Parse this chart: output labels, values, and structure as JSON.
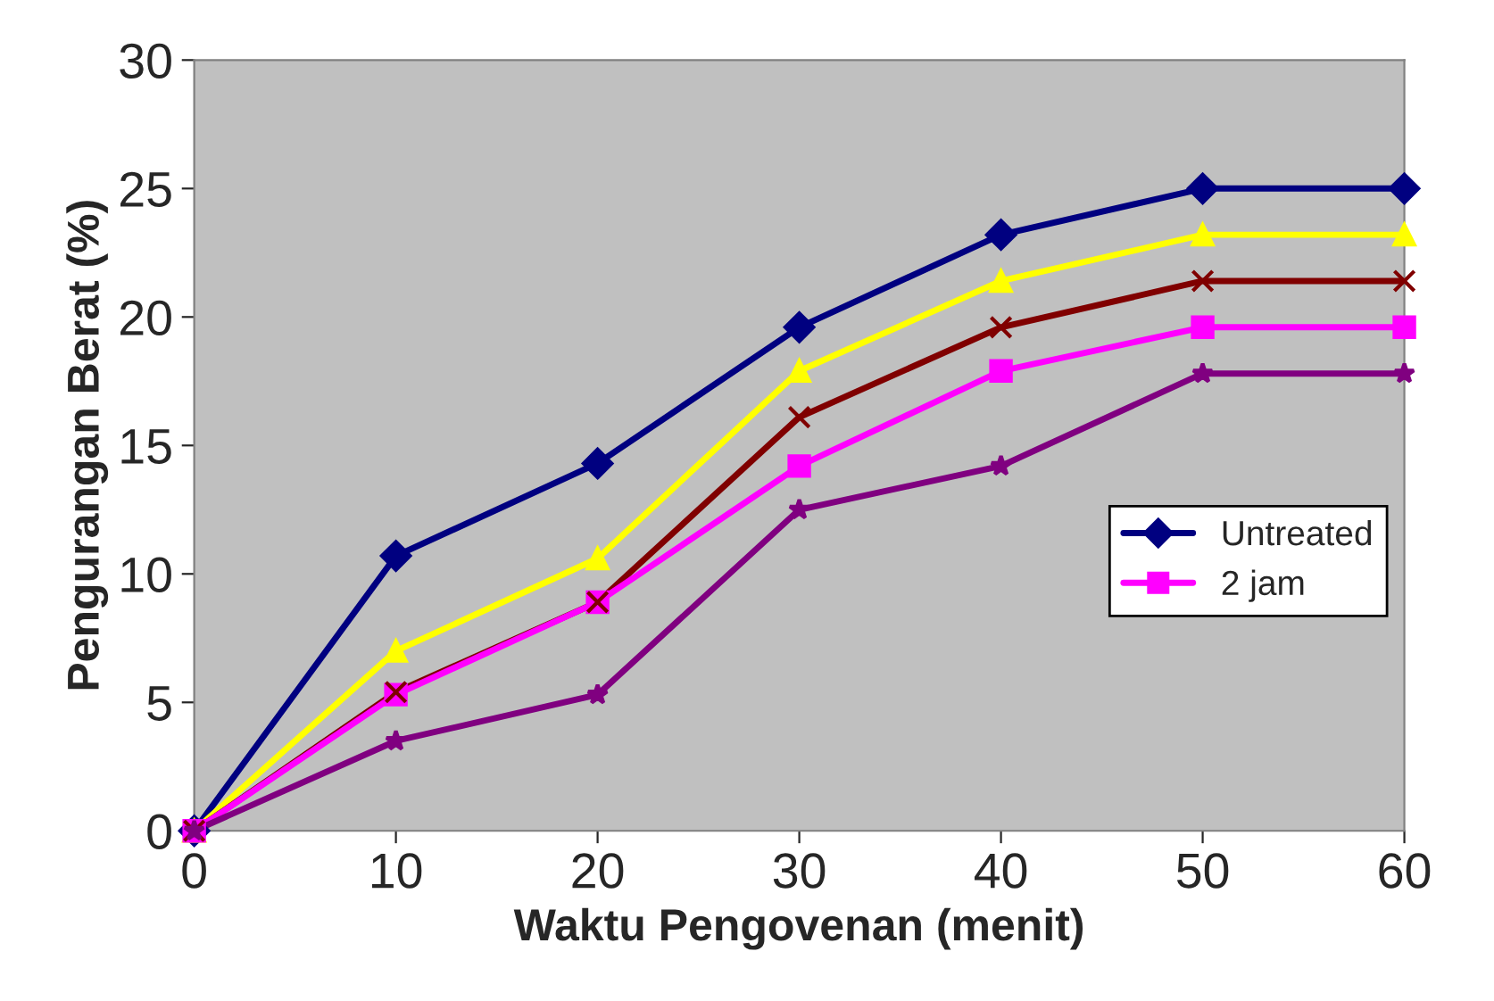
{
  "chart_data": {
    "type": "line",
    "xlabel": "Waktu Pengovenan (menit)",
    "ylabel": "Pengurangan Berat (%)",
    "x": [
      0,
      10,
      20,
      30,
      40,
      50,
      60
    ],
    "series": [
      {
        "name": "Untreated",
        "color": "#000080",
        "marker": "diamond",
        "values": [
          0,
          10.7,
          14.3,
          19.6,
          23.2,
          25.0,
          25.0
        ]
      },
      {
        "color": "#ffff00",
        "marker": "triangle",
        "values": [
          0,
          7.0,
          10.6,
          17.9,
          21.4,
          23.2,
          23.2
        ]
      },
      {
        "color": "#800000",
        "marker": "cross",
        "values": [
          0,
          5.4,
          8.9,
          16.1,
          19.6,
          21.4,
          21.4
        ]
      },
      {
        "name": "2 jam",
        "color": "#ff00ff",
        "marker": "square",
        "values": [
          0,
          5.3,
          8.9,
          14.2,
          17.9,
          19.6,
          19.6
        ]
      },
      {
        "color": "#800080",
        "marker": "star",
        "values": [
          0,
          3.5,
          5.3,
          12.5,
          14.2,
          17.8,
          17.8
        ]
      }
    ],
    "xlim": [
      0,
      60
    ],
    "xticks": [
      0,
      10,
      20,
      30,
      40,
      50,
      60
    ],
    "ylim": [
      0,
      30
    ],
    "yticks": [
      0,
      5,
      10,
      15,
      20,
      25,
      30
    ],
    "grid": false,
    "legend": "right",
    "line_style": "solid"
  }
}
